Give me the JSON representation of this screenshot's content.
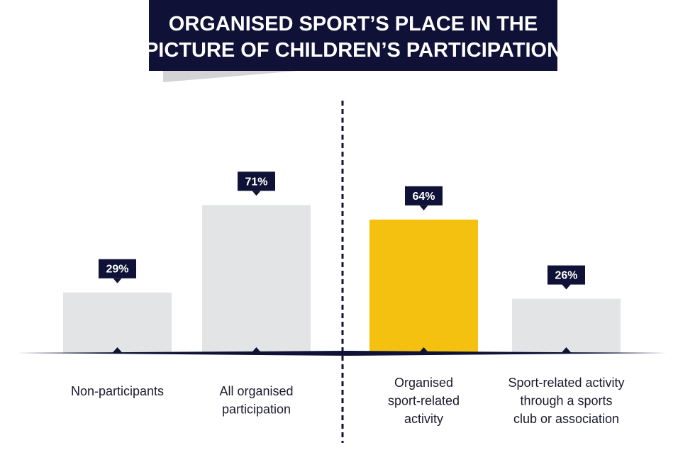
{
  "title": {
    "line1": "ORGANISED SPORT’S PLACE IN THE",
    "line2": "PICTURE OF CHILDREN’S PARTICIPATION"
  },
  "colors": {
    "navy": "#0f1136",
    "gray_bar": "#e3e4e6",
    "highlight_bar": "#f5c110",
    "title_shadow": "#d2d3d5"
  },
  "chart_data": {
    "type": "bar",
    "title": "ORGANISED SPORT’S PLACE IN THE PICTURE OF CHILDREN’S PARTICIPATION",
    "unit": "%",
    "categories": [
      [
        "Non-participants"
      ],
      [
        "All organised",
        "participation"
      ],
      [
        "Organised",
        "sport-related",
        "activity"
      ],
      [
        "Sport-related activity",
        "through a sports",
        "club or association"
      ]
    ],
    "values": [
      29,
      71,
      64,
      26
    ],
    "value_labels": [
      "29%",
      "71%",
      "64%",
      "26%"
    ],
    "highlight_index": 2,
    "divider_after_index": 1,
    "ylim": [
      0,
      100
    ],
    "grid": false
  }
}
